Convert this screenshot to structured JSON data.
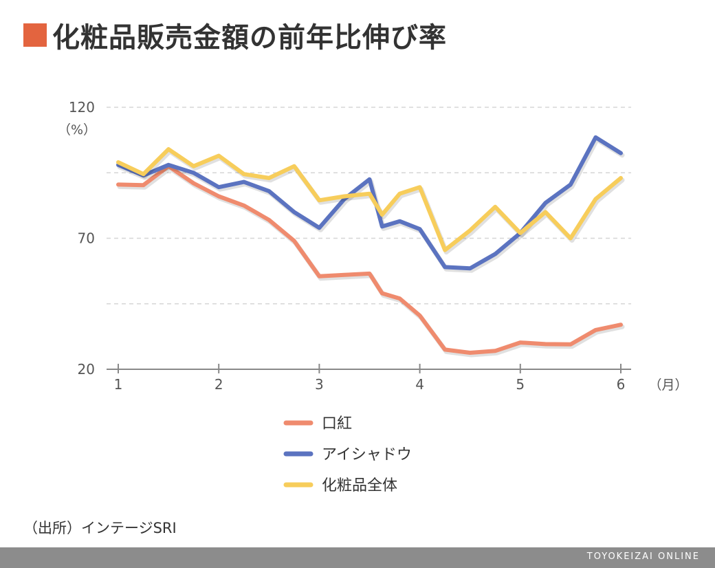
{
  "title": "化粧品販売金額の前年比伸び率",
  "colors": {
    "title_square": "#e3643f",
    "lipstick": "#ef8b6e",
    "eyeshadow": "#5b73c0",
    "total": "#f7cd5b",
    "grid": "#d6d6d6",
    "axis": "#888888",
    "footer": "#8c8c8c"
  },
  "chart_data": {
    "type": "line",
    "y_unit": "（%）",
    "x_unit": "（月）",
    "ylim": [
      20,
      120
    ],
    "y_ticks": [
      20,
      70,
      120
    ],
    "y_gridlines": [
      45,
      70,
      95,
      120
    ],
    "xlim": [
      1,
      6
    ],
    "x_ticks": [
      {
        "value": 1,
        "label": "1"
      },
      {
        "value": 2,
        "label": "2"
      },
      {
        "value": 3,
        "label": "3"
      },
      {
        "value": 4,
        "label": "4"
      },
      {
        "value": 5,
        "label": "5"
      },
      {
        "value": 6,
        "label": "6"
      }
    ],
    "x": [
      1,
      1.25,
      1.5,
      1.75,
      2,
      2.25,
      2.5,
      2.75,
      3,
      3.25,
      3.5,
      3.625,
      3.8,
      4,
      4.25,
      4.5,
      4.75,
      5,
      5.25,
      5.5,
      5.75,
      6
    ],
    "series": [
      {
        "name": "口紅",
        "color_key": "lipstick",
        "values": [
          90.5,
          90.3,
          97.5,
          91,
          86,
          82.5,
          77,
          69,
          55.5,
          56,
          56.5,
          49,
          47,
          40.5,
          27.5,
          26.3,
          27,
          30.2,
          29.6,
          29.5,
          35,
          37
        ]
      },
      {
        "name": "アイシャドウ",
        "color_key": "eyeshadow",
        "values": [
          98,
          94,
          98,
          95,
          89.5,
          91.5,
          88,
          80,
          74,
          85,
          92.5,
          74.5,
          76.5,
          73.5,
          59,
          58.5,
          64,
          72,
          83.5,
          90.5,
          108.5,
          102.5
        ]
      },
      {
        "name": "化粧品全体",
        "color_key": "total",
        "values": [
          99,
          94.5,
          104,
          97.5,
          101.5,
          94.5,
          93,
          97.5,
          84.5,
          86,
          87,
          79,
          87,
          89.5,
          65.5,
          73,
          82,
          72,
          80,
          70,
          85,
          93
        ]
      }
    ],
    "legend_position": "bottom-center"
  },
  "source": "（出所）インテージSRI",
  "footer": "TOYOKEIZAI ONLINE"
}
